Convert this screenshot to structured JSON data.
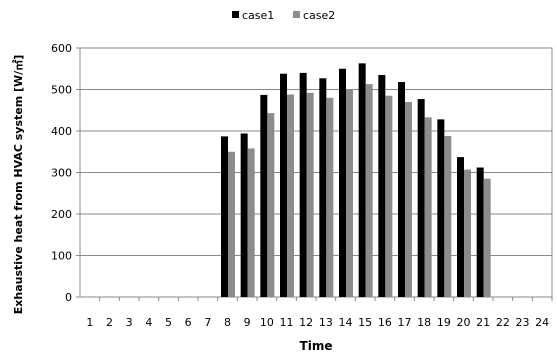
{
  "chart_data": {
    "type": "bar",
    "title": "",
    "xlabel": "Time",
    "ylabel": "Exhaustive heat from HVAC system [W/㎡]",
    "ylim": [
      0,
      600
    ],
    "yticks": [
      0,
      100,
      200,
      300,
      400,
      500,
      600
    ],
    "grid": "horizontal",
    "legend_position": "top",
    "categories": [
      "1",
      "2",
      "3",
      "4",
      "5",
      "6",
      "7",
      "8",
      "9",
      "10",
      "11",
      "12",
      "13",
      "14",
      "15",
      "16",
      "17",
      "18",
      "19",
      "20",
      "21",
      "22",
      "23",
      "24"
    ],
    "series": [
      {
        "name": "case1",
        "color": "#000000",
        "values": [
          0,
          0,
          0,
          0,
          0,
          0,
          0,
          387,
          394,
          487,
          538,
          540,
          527,
          550,
          563,
          535,
          518,
          477,
          428,
          337,
          312,
          0,
          0,
          0
        ]
      },
      {
        "name": "case2",
        "color": "#8c8c8c",
        "values": [
          0,
          0,
          0,
          0,
          0,
          0,
          0,
          350,
          358,
          443,
          488,
          492,
          480,
          500,
          513,
          485,
          470,
          433,
          388,
          307,
          285,
          0,
          0,
          0
        ]
      }
    ]
  }
}
